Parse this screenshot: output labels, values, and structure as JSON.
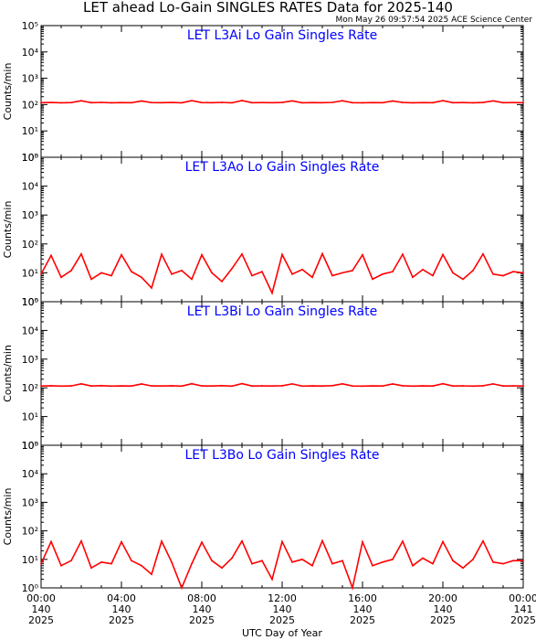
{
  "header": {
    "title": "LET ahead Lo-Gain SINGLES RATES Data for 2025-140",
    "stamp": "Mon May 26 09:57:54 2025 ACE Science Center"
  },
  "colors": {
    "series": "#ff0000",
    "panel_title": "#0000ff",
    "axes": "#000000"
  },
  "chart_data": [
    {
      "type": "line",
      "title": "LET L3Ai Lo Gain Singles Rate",
      "ylabel": "Counts/min",
      "yscale": "log",
      "ylim": [
        1,
        100000
      ],
      "yticks": [
        "10^0",
        "10^1",
        "10^2",
        "10^3",
        "10^4",
        "10^5"
      ],
      "xlim": [
        0,
        24
      ],
      "series": [
        {
          "x": [
            0,
            0.5,
            1,
            1.5,
            2,
            2.5,
            3,
            3.5,
            4,
            4.5,
            5,
            5.5,
            6,
            6.5,
            7,
            7.5,
            8,
            8.5,
            9,
            9.5,
            10,
            10.5,
            11,
            11.5,
            12,
            12.5,
            13,
            13.5,
            14,
            14.5,
            15,
            15.5,
            16,
            16.5,
            17,
            17.5,
            18,
            18.5,
            19,
            19.5,
            20,
            20.5,
            21,
            21.5,
            22,
            22.5,
            23,
            23.5,
            24
          ],
          "values": [
            118,
            120,
            117,
            119,
            140,
            118,
            121,
            117,
            119,
            118,
            138,
            119,
            118,
            120,
            117,
            141,
            119,
            118,
            121,
            117,
            142,
            118,
            119,
            118,
            120,
            139,
            117,
            119,
            118,
            121,
            140,
            118,
            117,
            119,
            118,
            138,
            120,
            117,
            119,
            118,
            141,
            118,
            119,
            117,
            120,
            139,
            118,
            119,
            118
          ]
        }
      ]
    },
    {
      "type": "line",
      "title": "LET L3Ao Lo Gain Singles Rate",
      "ylabel": "Counts/min",
      "yscale": "log",
      "ylim": [
        1,
        100000
      ],
      "yticks": [
        "10^0",
        "10^1",
        "10^2",
        "10^3",
        "10^4",
        "10^5"
      ],
      "xlim": [
        0,
        24
      ],
      "series": [
        {
          "x": [
            0,
            0.5,
            1,
            1.5,
            2,
            2.5,
            3,
            3.5,
            4,
            4.5,
            5,
            5.5,
            6,
            6.5,
            7,
            7.5,
            8,
            8.5,
            9,
            9.5,
            10,
            10.5,
            11,
            11.5,
            12,
            12.5,
            13,
            13.5,
            14,
            14.5,
            15,
            15.5,
            16,
            16.5,
            17,
            17.5,
            18,
            18.5,
            19,
            19.5,
            20,
            20.5,
            21,
            21.5,
            22,
            22.5,
            23,
            23.5,
            24
          ],
          "values": [
            9,
            40,
            7,
            12,
            45,
            6,
            10,
            8,
            42,
            11,
            7,
            3,
            44,
            9,
            12,
            6,
            42,
            10,
            5,
            14,
            45,
            8,
            11,
            2,
            43,
            9,
            13,
            7,
            46,
            8,
            10,
            12,
            42,
            6,
            9,
            11,
            44,
            7,
            13,
            8,
            43,
            10,
            6,
            12,
            45,
            9,
            8,
            11,
            10
          ]
        }
      ]
    },
    {
      "type": "line",
      "title": "LET L3Bi Lo Gain Singles Rate",
      "ylabel": "Counts/min",
      "yscale": "log",
      "ylim": [
        1,
        100000
      ],
      "yticks": [
        "10^0",
        "10^1",
        "10^2",
        "10^3",
        "10^4",
        "10^5"
      ],
      "xlim": [
        0,
        24
      ],
      "series": [
        {
          "x": [
            0,
            0.5,
            1,
            1.5,
            2,
            2.5,
            3,
            3.5,
            4,
            4.5,
            5,
            5.5,
            6,
            6.5,
            7,
            7.5,
            8,
            8.5,
            9,
            9.5,
            10,
            10.5,
            11,
            11.5,
            12,
            12.5,
            13,
            13.5,
            14,
            14.5,
            15,
            15.5,
            16,
            16.5,
            17,
            17.5,
            18,
            18.5,
            19,
            19.5,
            20,
            20.5,
            21,
            21.5,
            22,
            22.5,
            23,
            23.5,
            24
          ],
          "values": [
            116,
            118,
            115,
            117,
            138,
            116,
            119,
            115,
            117,
            116,
            136,
            117,
            116,
            118,
            115,
            139,
            117,
            116,
            119,
            115,
            140,
            116,
            117,
            116,
            118,
            137,
            115,
            117,
            116,
            119,
            138,
            116,
            115,
            117,
            116,
            136,
            118,
            115,
            117,
            116,
            139,
            116,
            117,
            115,
            118,
            137,
            116,
            117,
            116
          ]
        }
      ]
    },
    {
      "type": "line",
      "title": "LET L3Bo Lo Gain Singles Rate",
      "ylabel": "Counts/min",
      "yscale": "log",
      "ylim": [
        1,
        100000
      ],
      "yticks": [
        "10^0",
        "10^1",
        "10^2",
        "10^3",
        "10^4",
        "10^5"
      ],
      "xlim": [
        0,
        24
      ],
      "xticks": [
        {
          "x": 0,
          "time": "00:00",
          "doy": "140",
          "year": "2025"
        },
        {
          "x": 4,
          "time": "04:00",
          "doy": "140",
          "year": "2025"
        },
        {
          "x": 8,
          "time": "08:00",
          "doy": "140",
          "year": "2025"
        },
        {
          "x": 12,
          "time": "12:00",
          "doy": "140",
          "year": "2025"
        },
        {
          "x": 16,
          "time": "16:00",
          "doy": "140",
          "year": "2025"
        },
        {
          "x": 20,
          "time": "20:00",
          "doy": "140",
          "year": "2025"
        },
        {
          "x": 24,
          "time": "00:00",
          "doy": "141",
          "year": "2025"
        }
      ],
      "xlabel": "UTC Day of Year",
      "series": [
        {
          "x": [
            0,
            0.5,
            1,
            1.5,
            2,
            2.5,
            3,
            3.5,
            4,
            4.5,
            5,
            5.5,
            6,
            6.5,
            7,
            7.5,
            8,
            8.5,
            9,
            9.5,
            10,
            10.5,
            11,
            11.5,
            12,
            12.5,
            13,
            13.5,
            14,
            14.5,
            15,
            15.5,
            16,
            16.5,
            17,
            17.5,
            18,
            18.5,
            19,
            19.5,
            20,
            20.5,
            21,
            21.5,
            22,
            22.5,
            23,
            23.5,
            24
          ],
          "values": [
            7,
            42,
            6,
            9,
            44,
            5,
            8,
            7,
            41,
            9,
            6,
            3,
            43,
            8,
            1,
            7,
            40,
            9,
            5,
            11,
            44,
            7,
            9,
            2,
            42,
            8,
            10,
            6,
            45,
            7,
            9,
            1,
            41,
            6,
            8,
            10,
            43,
            6,
            11,
            7,
            42,
            9,
            5,
            10,
            44,
            8,
            7,
            9,
            9
          ]
        }
      ]
    }
  ]
}
